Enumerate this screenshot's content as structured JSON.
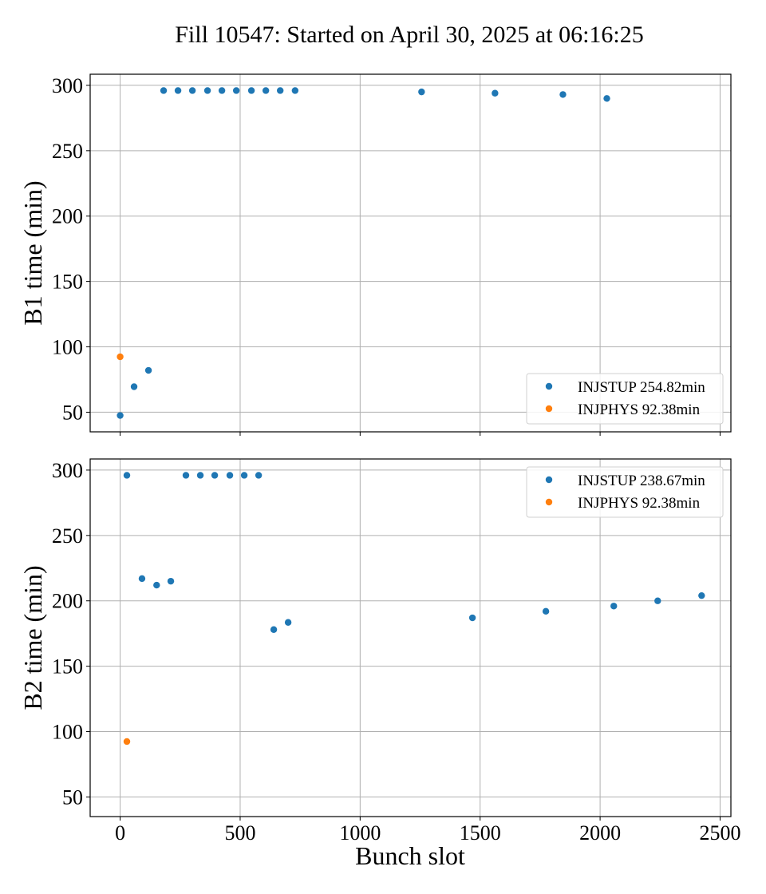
{
  "chart_data": {
    "type": "scatter",
    "title": "Fill 10547: Started on April 30, 2025 at 06:16:25",
    "xlabel": "Bunch slot",
    "xlim": [
      -125,
      2545
    ],
    "xticks": [
      0,
      500,
      1000,
      1500,
      2000,
      2500
    ],
    "xtick_labels": [
      "0",
      "500",
      "1000",
      "1500",
      "2000",
      "2500"
    ],
    "grid": true,
    "colors": {
      "INJSTUP": "#1f77b4",
      "INJPHYS": "#ff7f0e",
      "grid": "#b0b0b0"
    },
    "panels": [
      {
        "name": "B1",
        "ylabel": "B1 time (min)",
        "ylim": [
          35,
          308.5
        ],
        "yticks": [
          50,
          100,
          150,
          200,
          250,
          300
        ],
        "ytick_labels": [
          "50",
          "100",
          "150",
          "200",
          "250",
          "300"
        ],
        "show_xtick_labels": false,
        "legend_position": "lower right",
        "series": [
          {
            "name": "INJSTUP",
            "label": "INJSTUP 254.82min",
            "color": "#1f77b4",
            "x": [
              0,
              58,
              118,
              181,
              241,
              301,
              364,
              424,
              484,
              547,
              607,
              667,
              729,
              1256,
              1562,
              1845,
              2028
            ],
            "y": [
              47.5,
              69.5,
              82,
              296,
              296,
              296,
              296,
              296,
              296,
              296,
              296,
              296,
              296,
              295,
              294,
              293,
              290
            ]
          },
          {
            "name": "INJPHYS",
            "label": "INJPHYS 92.38min",
            "color": "#ff7f0e",
            "x": [
              0
            ],
            "y": [
              92.4
            ]
          }
        ]
      },
      {
        "name": "B2",
        "ylabel": "B2 time (min)",
        "ylim": [
          35,
          308.5
        ],
        "yticks": [
          50,
          100,
          150,
          200,
          250,
          300
        ],
        "ytick_labels": [
          "50",
          "100",
          "150",
          "200",
          "250",
          "300"
        ],
        "show_xtick_labels": true,
        "legend_position": "upper right",
        "series": [
          {
            "name": "INJSTUP",
            "label": "INJSTUP 238.67min",
            "color": "#1f77b4",
            "x": [
              28,
              91,
              152,
              211,
              274,
              334,
              394,
              457,
              517,
              577,
              640,
              700,
              1468,
              1774,
              2057,
              2240,
              2423
            ],
            "y": [
              296,
              217,
              212,
              215,
              296,
              296,
              296,
              296,
              296,
              296,
              178,
              183.5,
              187,
              192,
              196,
              200,
              204
            ]
          },
          {
            "name": "INJPHYS",
            "label": "INJPHYS 92.38min",
            "color": "#ff7f0e",
            "x": [
              28
            ],
            "y": [
              92.4
            ]
          }
        ]
      }
    ]
  }
}
